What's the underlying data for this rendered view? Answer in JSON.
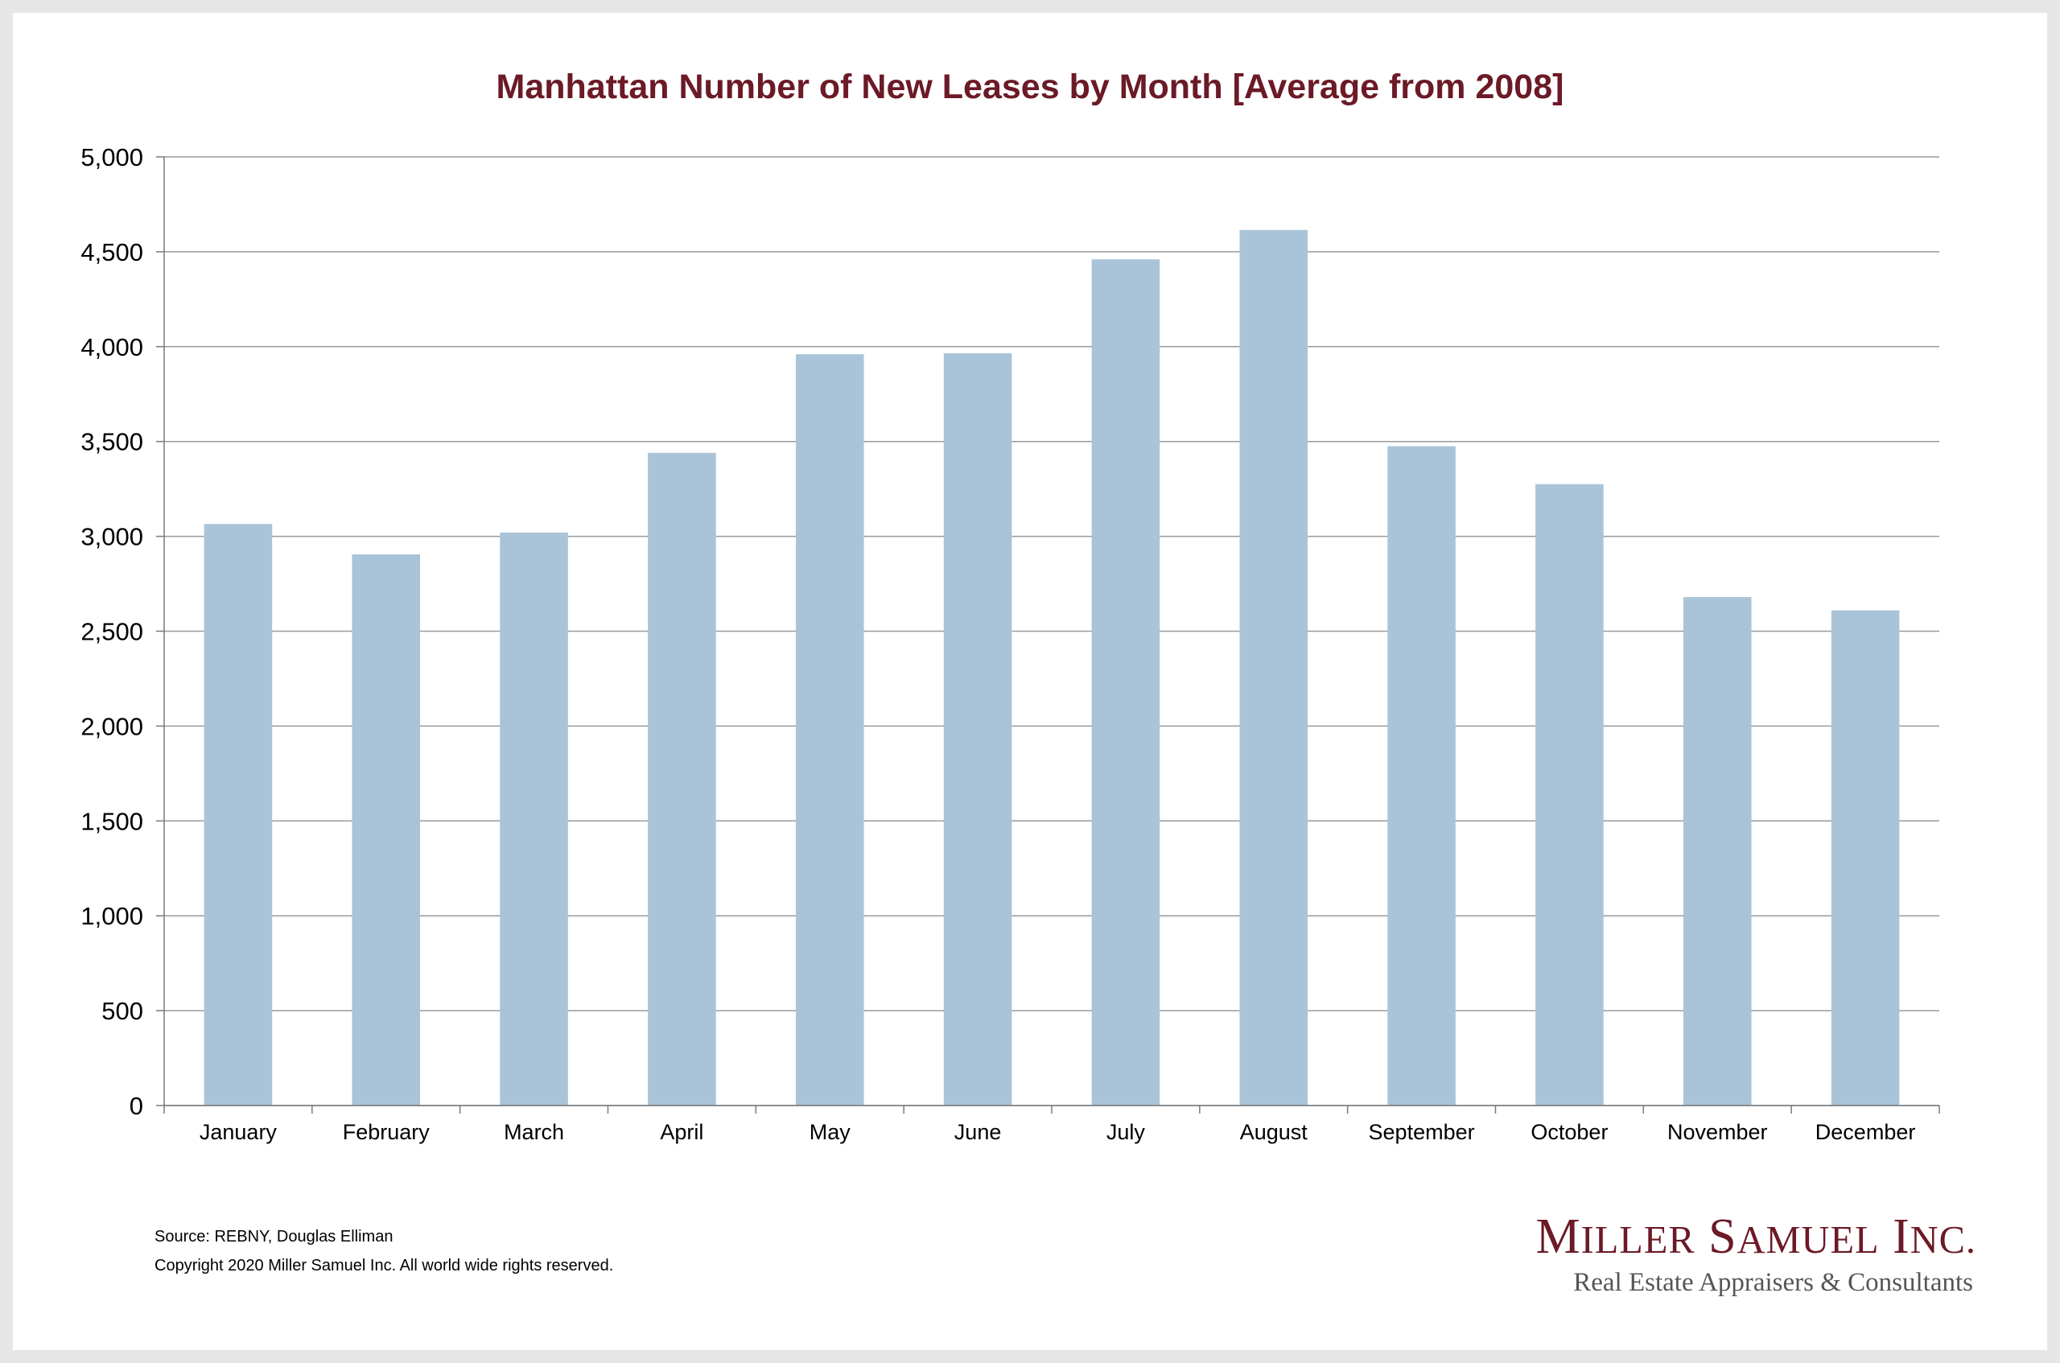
{
  "chart_data": {
    "type": "bar",
    "title": "Manhattan Number of New Leases by Month [Average from 2008]",
    "categories": [
      "January",
      "February",
      "March",
      "April",
      "May",
      "June",
      "July",
      "August",
      "September",
      "October",
      "November",
      "December"
    ],
    "values": [
      3065,
      2905,
      3020,
      3440,
      3960,
      3965,
      4460,
      4615,
      3475,
      3275,
      2680,
      2610
    ],
    "y_ticks": [
      "0",
      "500",
      "1,000",
      "1,500",
      "2,000",
      "2,500",
      "3,000",
      "3,500",
      "4,000",
      "4,500",
      "5,000"
    ],
    "ylim": [
      0,
      5000
    ],
    "xlabel": "",
    "ylabel": "",
    "grid": true,
    "legend": "none",
    "bar_color": "#a9c4d8"
  },
  "footer": {
    "source": "Source: REBNY, Douglas Elliman",
    "copyright": "Copyright 2020 Miller Samuel Inc.  All world wide rights reserved."
  },
  "brand": {
    "name": "Miller Samuel Inc.",
    "tagline": "Real Estate Appraisers & Consultants",
    "color": "#6b1a26"
  }
}
